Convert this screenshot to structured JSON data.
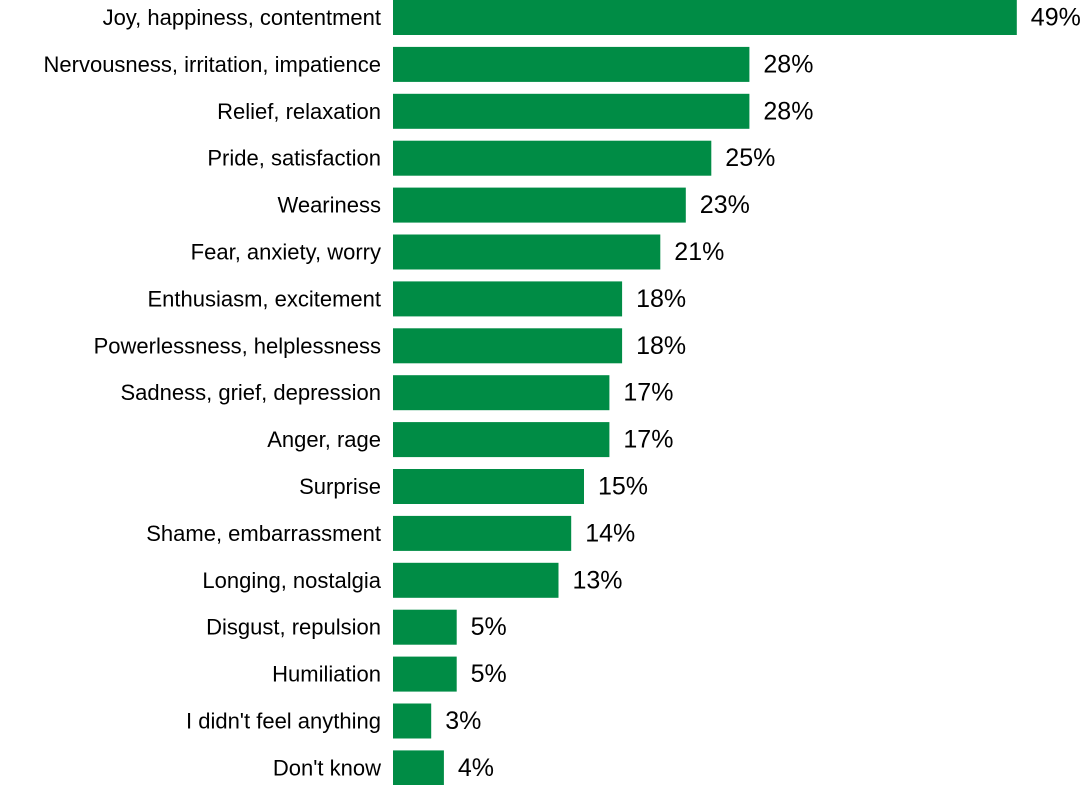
{
  "chart_data": {
    "type": "bar",
    "orientation": "horizontal",
    "categories": [
      "Joy, happiness, contentment",
      "Nervousness, irritation, impatience",
      "Relief, relaxation",
      "Pride, satisfaction",
      "Weariness",
      "Fear, anxiety, worry",
      "Enthusiasm, excitement",
      "Powerlessness, helplessness",
      "Sadness, grief, depression",
      "Anger, rage",
      "Surprise",
      "Shame, embarrassment",
      "Longing, nostalgia",
      "Disgust, repulsion",
      "Humiliation",
      "I didn't feel anything",
      "Don't know"
    ],
    "values": [
      49,
      28,
      28,
      25,
      23,
      21,
      18,
      18,
      17,
      17,
      15,
      14,
      13,
      5,
      5,
      3,
      4
    ],
    "data_labels": [
      "49%",
      "28%",
      "28%",
      "25%",
      "23%",
      "21%",
      "18%",
      "18%",
      "17%",
      "17%",
      "15%",
      "14%",
      "13%",
      "5%",
      "5%",
      "3%",
      "4%"
    ],
    "title": "",
    "xlabel": "",
    "ylabel": "",
    "grid": false,
    "legend": "none",
    "bar_color": "#008c45"
  }
}
